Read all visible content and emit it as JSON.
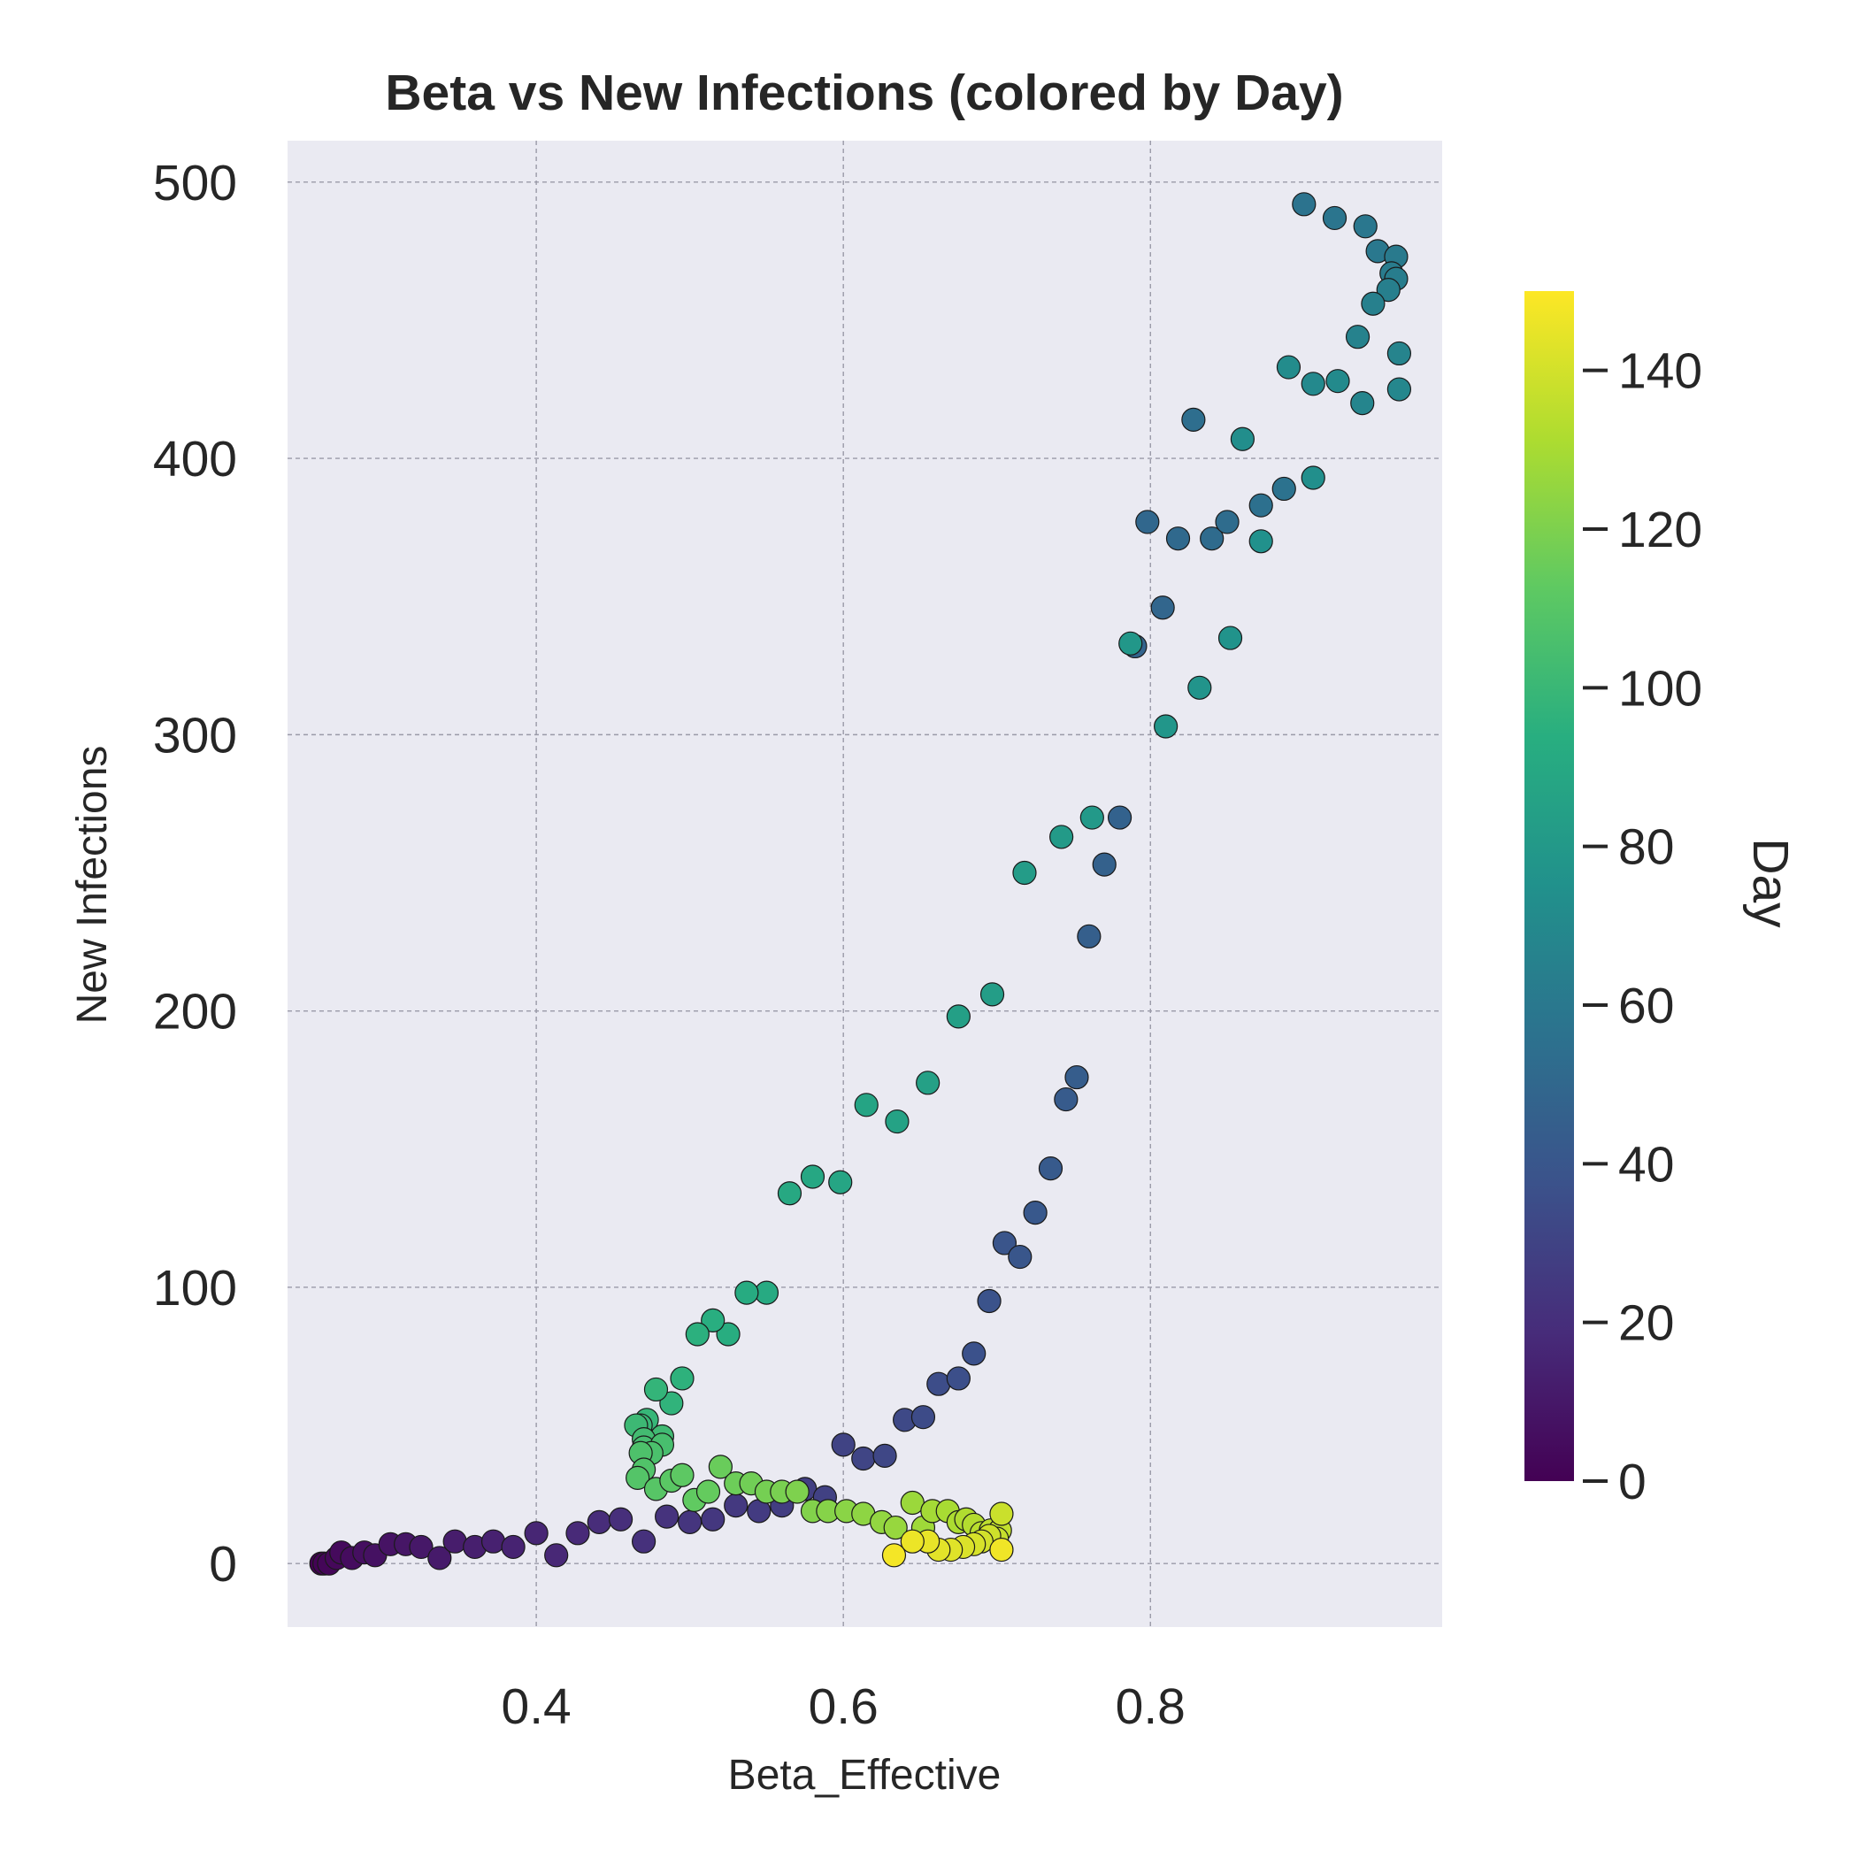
{
  "chart_data": {
    "type": "scatter",
    "title": "Beta vs New Infections (colored by Day)",
    "xlabel": "Beta_Effective",
    "ylabel": "New Infections",
    "xlim": [
      0.238,
      0.99
    ],
    "ylim": [
      -23,
      515
    ],
    "xticks": [
      0.4,
      0.6,
      0.8
    ],
    "yticks": [
      0,
      100,
      200,
      300,
      400,
      500
    ],
    "xtick_labels": [
      "0.4",
      "0.6",
      "0.8"
    ],
    "ytick_labels": [
      "0",
      "100",
      "200",
      "300",
      "400",
      "500"
    ],
    "grid": true,
    "colorbar": {
      "label": "Day",
      "range": [
        0,
        150
      ],
      "ticks": [
        0,
        20,
        40,
        60,
        80,
        100,
        120,
        140
      ],
      "tick_labels": [
        "0",
        "20",
        "40",
        "60",
        "80",
        "100",
        "120",
        "140"
      ],
      "colormap": "viridis"
    },
    "series": [
      {
        "points": [
          {
            "x": 0.26,
            "y": 0,
            "day": 0
          },
          {
            "x": 0.262,
            "y": 0,
            "day": 1
          },
          {
            "x": 0.265,
            "y": 0,
            "day": 2
          },
          {
            "x": 0.27,
            "y": 2,
            "day": 3
          },
          {
            "x": 0.273,
            "y": 4,
            "day": 4
          },
          {
            "x": 0.28,
            "y": 2,
            "day": 5
          },
          {
            "x": 0.288,
            "y": 4,
            "day": 6
          },
          {
            "x": 0.295,
            "y": 3,
            "day": 7
          },
          {
            "x": 0.305,
            "y": 7,
            "day": 8
          },
          {
            "x": 0.315,
            "y": 7,
            "day": 9
          },
          {
            "x": 0.325,
            "y": 6,
            "day": 10
          },
          {
            "x": 0.337,
            "y": 2,
            "day": 11
          },
          {
            "x": 0.347,
            "y": 8,
            "day": 12
          },
          {
            "x": 0.36,
            "y": 6,
            "day": 13
          },
          {
            "x": 0.372,
            "y": 8,
            "day": 14
          },
          {
            "x": 0.385,
            "y": 6,
            "day": 15
          },
          {
            "x": 0.4,
            "y": 11,
            "day": 16
          },
          {
            "x": 0.413,
            "y": 3,
            "day": 17
          },
          {
            "x": 0.427,
            "y": 11,
            "day": 18
          },
          {
            "x": 0.441,
            "y": 15,
            "day": 19
          },
          {
            "x": 0.455,
            "y": 16,
            "day": 20
          },
          {
            "x": 0.47,
            "y": 8,
            "day": 21
          },
          {
            "x": 0.485,
            "y": 17,
            "day": 22
          },
          {
            "x": 0.5,
            "y": 15,
            "day": 23
          },
          {
            "x": 0.515,
            "y": 16,
            "day": 24
          },
          {
            "x": 0.53,
            "y": 21,
            "day": 25
          },
          {
            "x": 0.545,
            "y": 19,
            "day": 26
          },
          {
            "x": 0.56,
            "y": 21,
            "day": 27
          },
          {
            "x": 0.575,
            "y": 27,
            "day": 28
          },
          {
            "x": 0.588,
            "y": 24,
            "day": 29
          },
          {
            "x": 0.6,
            "y": 43,
            "day": 30
          },
          {
            "x": 0.613,
            "y": 38,
            "day": 31
          },
          {
            "x": 0.627,
            "y": 39,
            "day": 32
          },
          {
            "x": 0.64,
            "y": 52,
            "day": 33
          },
          {
            "x": 0.652,
            "y": 53,
            "day": 34
          },
          {
            "x": 0.662,
            "y": 65,
            "day": 35
          },
          {
            "x": 0.675,
            "y": 67,
            "day": 36
          },
          {
            "x": 0.685,
            "y": 76,
            "day": 37
          },
          {
            "x": 0.695,
            "y": 95,
            "day": 38
          },
          {
            "x": 0.705,
            "y": 116,
            "day": 39
          },
          {
            "x": 0.715,
            "y": 111,
            "day": 40
          },
          {
            "x": 0.725,
            "y": 127,
            "day": 41
          },
          {
            "x": 0.735,
            "y": 143,
            "day": 42
          },
          {
            "x": 0.745,
            "y": 168,
            "day": 43
          },
          {
            "x": 0.752,
            "y": 176,
            "day": 44
          },
          {
            "x": 0.76,
            "y": 227,
            "day": 45
          },
          {
            "x": 0.77,
            "y": 253,
            "day": 46
          },
          {
            "x": 0.78,
            "y": 270,
            "day": 47
          },
          {
            "x": 0.79,
            "y": 332,
            "day": 48
          },
          {
            "x": 0.808,
            "y": 346,
            "day": 49
          },
          {
            "x": 0.798,
            "y": 377,
            "day": 50
          },
          {
            "x": 0.818,
            "y": 371,
            "day": 51
          },
          {
            "x": 0.84,
            "y": 371,
            "day": 52
          },
          {
            "x": 0.85,
            "y": 377,
            "day": 53
          },
          {
            "x": 0.828,
            "y": 414,
            "day": 54
          },
          {
            "x": 0.872,
            "y": 383,
            "day": 55
          },
          {
            "x": 0.887,
            "y": 389,
            "day": 56
          },
          {
            "x": 0.9,
            "y": 492,
            "day": 57
          },
          {
            "x": 0.92,
            "y": 487,
            "day": 58
          },
          {
            "x": 0.94,
            "y": 484,
            "day": 59
          },
          {
            "x": 0.948,
            "y": 475,
            "day": 60
          },
          {
            "x": 0.96,
            "y": 473,
            "day": 61
          },
          {
            "x": 0.957,
            "y": 467,
            "day": 62
          },
          {
            "x": 0.96,
            "y": 465,
            "day": 63
          },
          {
            "x": 0.955,
            "y": 461,
            "day": 64
          },
          {
            "x": 0.945,
            "y": 456,
            "day": 65
          },
          {
            "x": 0.935,
            "y": 444,
            "day": 66
          },
          {
            "x": 0.962,
            "y": 438,
            "day": 67
          },
          {
            "x": 0.938,
            "y": 420,
            "day": 68
          },
          {
            "x": 0.962,
            "y": 425,
            "day": 69
          },
          {
            "x": 0.906,
            "y": 427,
            "day": 70
          },
          {
            "x": 0.922,
            "y": 428,
            "day": 71
          },
          {
            "x": 0.89,
            "y": 433,
            "day": 72
          },
          {
            "x": 0.86,
            "y": 407,
            "day": 73
          },
          {
            "x": 0.906,
            "y": 393,
            "day": 74
          },
          {
            "x": 0.872,
            "y": 370,
            "day": 75
          },
          {
            "x": 0.852,
            "y": 335,
            "day": 76
          },
          {
            "x": 0.832,
            "y": 317,
            "day": 77
          },
          {
            "x": 0.81,
            "y": 303,
            "day": 78
          },
          {
            "x": 0.787,
            "y": 333,
            "day": 79
          },
          {
            "x": 0.762,
            "y": 270,
            "day": 80
          },
          {
            "x": 0.742,
            "y": 263,
            "day": 81
          },
          {
            "x": 0.718,
            "y": 250,
            "day": 82
          },
          {
            "x": 0.697,
            "y": 206,
            "day": 83
          },
          {
            "x": 0.675,
            "y": 198,
            "day": 84
          },
          {
            "x": 0.655,
            "y": 174,
            "day": 85
          },
          {
            "x": 0.635,
            "y": 160,
            "day": 86
          },
          {
            "x": 0.615,
            "y": 166,
            "day": 87
          },
          {
            "x": 0.598,
            "y": 138,
            "day": 88
          },
          {
            "x": 0.58,
            "y": 140,
            "day": 89
          },
          {
            "x": 0.565,
            "y": 134,
            "day": 90
          },
          {
            "x": 0.55,
            "y": 98,
            "day": 91
          },
          {
            "x": 0.537,
            "y": 98,
            "day": 92
          },
          {
            "x": 0.525,
            "y": 83,
            "day": 93
          },
          {
            "x": 0.515,
            "y": 88,
            "day": 94
          },
          {
            "x": 0.505,
            "y": 83,
            "day": 95
          },
          {
            "x": 0.495,
            "y": 67,
            "day": 96
          },
          {
            "x": 0.488,
            "y": 58,
            "day": 97
          },
          {
            "x": 0.478,
            "y": 63,
            "day": 98
          },
          {
            "x": 0.472,
            "y": 52,
            "day": 99
          },
          {
            "x": 0.468,
            "y": 50,
            "day": 100
          },
          {
            "x": 0.465,
            "y": 50,
            "day": 101
          },
          {
            "x": 0.482,
            "y": 46,
            "day": 102
          },
          {
            "x": 0.47,
            "y": 45,
            "day": 103
          },
          {
            "x": 0.47,
            "y": 42,
            "day": 104
          },
          {
            "x": 0.482,
            "y": 43,
            "day": 105
          },
          {
            "x": 0.475,
            "y": 40,
            "day": 106
          },
          {
            "x": 0.468,
            "y": 40,
            "day": 107
          },
          {
            "x": 0.47,
            "y": 34,
            "day": 108
          },
          {
            "x": 0.466,
            "y": 31,
            "day": 109
          },
          {
            "x": 0.478,
            "y": 27,
            "day": 110
          },
          {
            "x": 0.488,
            "y": 30,
            "day": 111
          },
          {
            "x": 0.495,
            "y": 32,
            "day": 112
          },
          {
            "x": 0.503,
            "y": 23,
            "day": 113
          },
          {
            "x": 0.512,
            "y": 26,
            "day": 114
          },
          {
            "x": 0.52,
            "y": 35,
            "day": 115
          },
          {
            "x": 0.53,
            "y": 29,
            "day": 116
          },
          {
            "x": 0.54,
            "y": 29,
            "day": 117
          },
          {
            "x": 0.55,
            "y": 26,
            "day": 118
          },
          {
            "x": 0.56,
            "y": 26,
            "day": 119
          },
          {
            "x": 0.57,
            "y": 26,
            "day": 120
          },
          {
            "x": 0.58,
            "y": 19,
            "day": 121
          },
          {
            "x": 0.59,
            "y": 19,
            "day": 122
          },
          {
            "x": 0.602,
            "y": 19,
            "day": 123
          },
          {
            "x": 0.613,
            "y": 18,
            "day": 124
          },
          {
            "x": 0.625,
            "y": 15,
            "day": 125
          },
          {
            "x": 0.634,
            "y": 13,
            "day": 126
          },
          {
            "x": 0.645,
            "y": 22,
            "day": 127
          },
          {
            "x": 0.652,
            "y": 13,
            "day": 128
          },
          {
            "x": 0.658,
            "y": 19,
            "day": 129
          },
          {
            "x": 0.668,
            "y": 19,
            "day": 130
          },
          {
            "x": 0.675,
            "y": 15,
            "day": 131
          },
          {
            "x": 0.68,
            "y": 16,
            "day": 132
          },
          {
            "x": 0.685,
            "y": 14,
            "day": 133
          },
          {
            "x": 0.69,
            "y": 11,
            "day": 134
          },
          {
            "x": 0.696,
            "y": 12,
            "day": 135
          },
          {
            "x": 0.702,
            "y": 12,
            "day": 136
          },
          {
            "x": 0.7,
            "y": 9,
            "day": 137
          },
          {
            "x": 0.703,
            "y": 18,
            "day": 138
          },
          {
            "x": 0.695,
            "y": 10,
            "day": 139
          },
          {
            "x": 0.69,
            "y": 8,
            "day": 140
          },
          {
            "x": 0.685,
            "y": 7,
            "day": 141
          },
          {
            "x": 0.678,
            "y": 6,
            "day": 142
          },
          {
            "x": 0.67,
            "y": 5,
            "day": 143
          },
          {
            "x": 0.662,
            "y": 5,
            "day": 144
          },
          {
            "x": 0.655,
            "y": 8,
            "day": 145
          },
          {
            "x": 0.645,
            "y": 8,
            "day": 146
          },
          {
            "x": 0.703,
            "y": 5,
            "day": 147
          },
          {
            "x": 0.633,
            "y": 3,
            "day": 148
          }
        ]
      }
    ]
  }
}
